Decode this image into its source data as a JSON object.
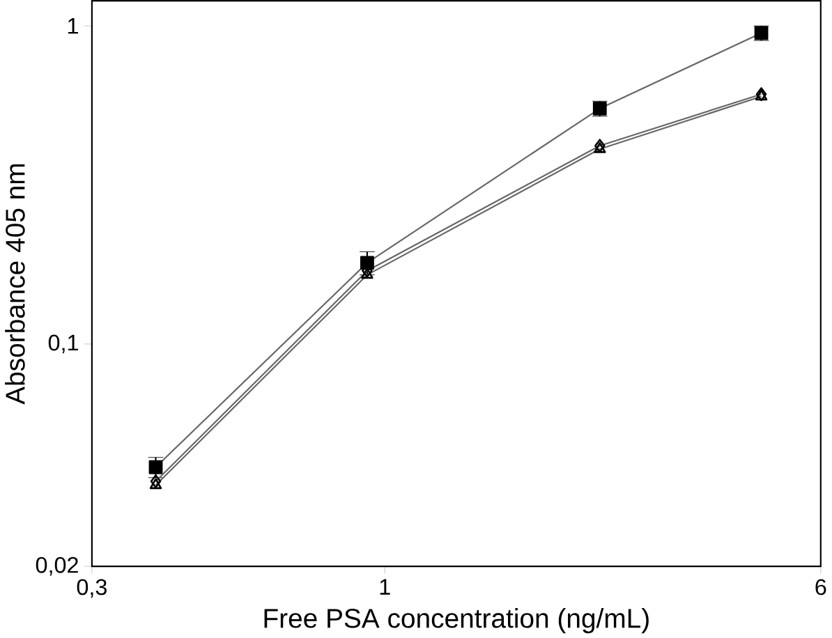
{
  "chart_data": {
    "type": "line",
    "xlabel": "Free PSA concentration (ng/mL)",
    "ylabel": "Absorbance 405 nm",
    "x": [
      0.39,
      0.93,
      2.42,
      4.7
    ],
    "series": [
      {
        "color": "#000000",
        "marker": "square",
        "values": [
          0.041,
          0.18,
          0.55,
          0.95
        ],
        "errors": [
          0.003,
          0.015,
          0.03,
          0.05
        ]
      },
      {
        "color": "#000000",
        "marker": "diamond",
        "values": [
          0.037,
          0.17,
          0.42,
          0.61
        ]
      },
      {
        "color": "#000000",
        "marker": "triangle",
        "values": [
          0.036,
          0.165,
          0.41,
          0.6
        ]
      }
    ],
    "log": "xy",
    "grid": false,
    "xlim": [
      0.3,
      6
    ],
    "ylim": [
      0.02,
      1.2
    ],
    "xticks": [
      {
        "value": 0.3,
        "label": "0,3"
      },
      1,
      6
    ],
    "yticks": [
      {
        "value": 0.02,
        "label": "0,02"
      },
      {
        "value": 0.1,
        "label": "0,1"
      },
      1
    ]
  }
}
